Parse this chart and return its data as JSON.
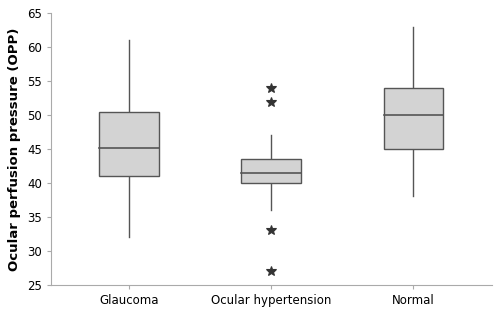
{
  "categories": [
    "Glaucoma",
    "Ocular hypertension",
    "Normal"
  ],
  "boxes": [
    {
      "q1": 41.0,
      "median": 45.2,
      "q3": 50.5,
      "whisker_low": 32.0,
      "whisker_high": 61.0,
      "outliers": []
    },
    {
      "q1": 40.0,
      "median": 41.5,
      "q3": 43.5,
      "whisker_low": 36.0,
      "whisker_high": 47.0,
      "outliers": [
        27.0,
        33.0,
        52.0,
        54.0
      ]
    },
    {
      "q1": 45.0,
      "median": 50.0,
      "q3": 54.0,
      "whisker_low": 38.0,
      "whisker_high": 63.0,
      "outliers": []
    }
  ],
  "ylabel": "Ocular perfusion pressure (OPP)",
  "ylim": [
    25,
    65
  ],
  "yticks": [
    25,
    30,
    35,
    40,
    45,
    50,
    55,
    60,
    65
  ],
  "box_color": "#d3d3d3",
  "box_edge_color": "#555555",
  "whisker_color": "#555555",
  "median_color": "#555555",
  "outlier_marker": "*",
  "outlier_color": "#333333",
  "box_width": 0.42,
  "linewidth": 1.0,
  "background_color": "#ffffff",
  "tick_fontsize": 8.5,
  "ylabel_fontsize": 9.5,
  "ylabel_bold": true
}
